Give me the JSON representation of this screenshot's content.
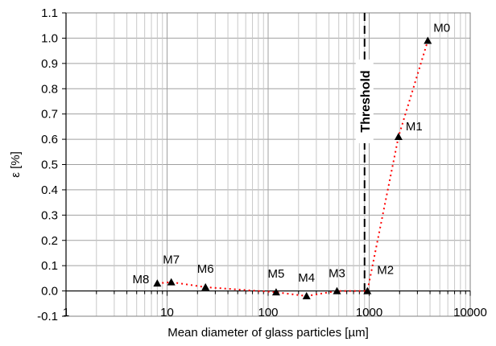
{
  "chart_data": {
    "type": "scatter",
    "xlabel": "Mean diameter of glass particles [µm]",
    "ylabel": "ε [%]",
    "xscale": "log",
    "xlim": [
      1,
      10000
    ],
    "ylim": [
      -0.1,
      1.1
    ],
    "xticks": [
      1,
      10,
      100,
      1000,
      10000
    ],
    "xtick_labels": [
      "1",
      "10",
      "100",
      "1000",
      "10000"
    ],
    "yticks": [
      -0.1,
      0.0,
      0.1,
      0.2,
      0.3,
      0.4,
      0.5,
      0.6,
      0.7,
      0.8,
      0.9,
      1.0,
      1.1
    ],
    "ytick_labels": [
      "-0.1",
      "0.0",
      "0.1",
      "0.2",
      "0.3",
      "0.4",
      "0.5",
      "0.6",
      "0.7",
      "0.8",
      "0.9",
      "1.0",
      "1.1"
    ],
    "grid": true,
    "line_color": "#ff0000",
    "marker_color": "#000000",
    "points": [
      {
        "label": "M0",
        "x": 3800,
        "y": 0.99
      },
      {
        "label": "M1",
        "x": 1950,
        "y": 0.61
      },
      {
        "label": "M2",
        "x": 960,
        "y": 0.0
      },
      {
        "label": "M3",
        "x": 480,
        "y": 0.0
      },
      {
        "label": "M4",
        "x": 240,
        "y": -0.02
      },
      {
        "label": "M5",
        "x": 120,
        "y": -0.005
      },
      {
        "label": "M6",
        "x": 24,
        "y": 0.015
      },
      {
        "label": "M7",
        "x": 11,
        "y": 0.035
      },
      {
        "label": "M8",
        "x": 8,
        "y": 0.03
      }
    ],
    "threshold": {
      "x": 900,
      "label": "Threshold"
    }
  }
}
